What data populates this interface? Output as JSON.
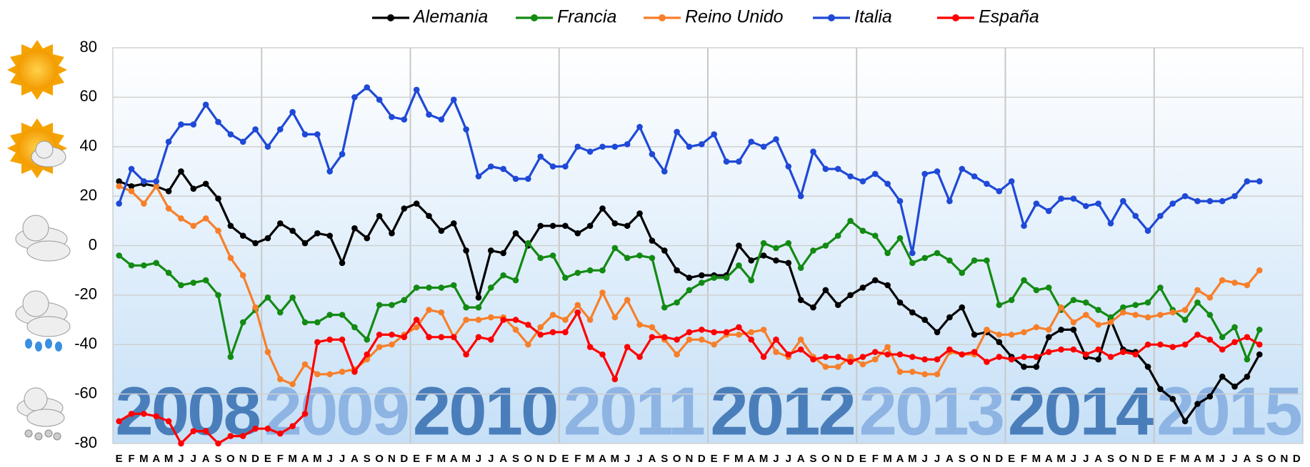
{
  "chart_data": {
    "type": "line",
    "categories": [
      "E",
      "F",
      "M",
      "A",
      "M",
      "J",
      "J",
      "A",
      "S",
      "O",
      "N",
      "D",
      "E",
      "F",
      "M",
      "A",
      "M",
      "J",
      "J",
      "A",
      "S",
      "O",
      "N",
      "D",
      "E",
      "F",
      "M",
      "A",
      "M",
      "J",
      "J",
      "A",
      "S",
      "O",
      "N",
      "D",
      "E",
      "F",
      "M",
      "A",
      "M",
      "J",
      "J",
      "A",
      "S",
      "O",
      "N",
      "D",
      "E",
      "F",
      "M",
      "A",
      "M",
      "J",
      "J",
      "A",
      "S",
      "O",
      "N",
      "D",
      "E",
      "F",
      "M",
      "A",
      "M",
      "J",
      "J",
      "A",
      "S",
      "O",
      "N",
      "D",
      "E",
      "F",
      "M",
      "A",
      "M",
      "J",
      "J",
      "A",
      "S",
      "O",
      "N",
      "D",
      "E",
      "F",
      "M",
      "A",
      "M",
      "J",
      "J",
      "A",
      "S",
      "O",
      "N",
      "D"
    ],
    "year_labels": [
      "2008",
      "2009",
      "2010",
      "2011",
      "2012",
      "2013",
      "2014",
      "2015"
    ],
    "year_colors": [
      "#4a7ebb",
      "#8eb4e3",
      "#4a7ebb",
      "#8eb4e3",
      "#4a7ebb",
      "#8eb4e3",
      "#4a7ebb",
      "#8eb4e3"
    ],
    "ylim": [
      -80,
      80
    ],
    "yticks": [
      -80,
      -60,
      -40,
      -20,
      0,
      20,
      40,
      60,
      80
    ],
    "grid": true,
    "legend": "top",
    "series": [
      {
        "name": "Alemania",
        "color": "#000000",
        "values": [
          26,
          24,
          25,
          24,
          22,
          30,
          23,
          25,
          19,
          8,
          4,
          1,
          3,
          9,
          6,
          1,
          5,
          4,
          -7,
          7,
          3,
          12,
          5,
          15,
          17,
          12,
          6,
          9,
          -2,
          -21,
          -2,
          -3,
          5,
          0,
          8,
          8,
          8,
          5,
          8,
          15,
          9,
          8,
          13,
          2,
          -2,
          -10,
          -13,
          -12,
          -12,
          -12,
          0,
          -6,
          -4,
          -6,
          -7,
          -22,
          -25,
          -18,
          -24,
          -20,
          -17,
          -14,
          -16,
          -23,
          -27,
          -30,
          -35,
          -29,
          -25,
          -36,
          -35,
          -39,
          -45,
          -49,
          -49,
          -37,
          -34,
          -34,
          -45,
          -46,
          -30,
          -42,
          -43,
          -49,
          -58,
          -62,
          -71,
          -64,
          -61,
          -53,
          -57,
          -53,
          -44,
          null,
          null,
          null
        ]
      },
      {
        "name": "Francia",
        "color": "#138a13",
        "values": [
          -4,
          -8,
          -8,
          -7,
          -11,
          -16,
          -15,
          -14,
          -20,
          -45,
          -31,
          -26,
          -21,
          -27,
          -21,
          -31,
          -31,
          -28,
          -28,
          -33,
          -38,
          -24,
          -24,
          -22,
          -17,
          -17,
          -17,
          -16,
          -25,
          -25,
          -17,
          -12,
          -14,
          1,
          -5,
          -4,
          -13,
          -11,
          -10,
          -10,
          -1,
          -5,
          -4,
          -5,
          -25,
          -23,
          -18,
          -15,
          -13,
          -13,
          -8,
          -14,
          1,
          -1,
          1,
          -9,
          -2,
          0,
          4,
          10,
          6,
          4,
          -3,
          3,
          -7,
          -5,
          -3,
          -6,
          -11,
          -6,
          -6,
          -24,
          -22,
          -14,
          -18,
          -17,
          -26,
          -22,
          -23,
          -26,
          -29,
          -25,
          -24,
          -23,
          -17,
          -26,
          -30,
          -23,
          -28,
          -37,
          -33,
          -46,
          -34,
          null,
          null,
          null
        ]
      },
      {
        "name": "Reino Unido",
        "color": "#f77f2a",
        "values": [
          24,
          22,
          17,
          24,
          15,
          11,
          8,
          11,
          6,
          -5,
          -12,
          -25,
          -43,
          -54,
          -56,
          -48,
          -52,
          -52,
          -51,
          -50,
          -46,
          -41,
          -40,
          -36,
          -33,
          -26,
          -27,
          -37,
          -30,
          -30,
          -29,
          -29,
          -34,
          -40,
          -33,
          -28,
          -30,
          -24,
          -30,
          -19,
          -29,
          -22,
          -32,
          -33,
          -38,
          -44,
          -38,
          -38,
          -40,
          -36,
          -36,
          -35,
          -34,
          -43,
          -45,
          -38,
          -45,
          -49,
          -49,
          -45,
          -48,
          -46,
          -41,
          -51,
          -51,
          -52,
          -52,
          -43,
          -44,
          -44,
          -34,
          -36,
          -36,
          -35,
          -33,
          -34,
          -25,
          -31,
          -28,
          -32,
          -31,
          -27,
          -28,
          -29,
          -28,
          -27,
          -26,
          -18,
          -21,
          -14,
          -15,
          -16,
          -10,
          null,
          null,
          null
        ]
      },
      {
        "name": "Italia",
        "color": "#1f49d6",
        "values": [
          17,
          31,
          26,
          26,
          42,
          49,
          49,
          57,
          50,
          45,
          42,
          47,
          40,
          47,
          54,
          45,
          45,
          30,
          37,
          60,
          64,
          59,
          52,
          51,
          63,
          53,
          51,
          59,
          47,
          28,
          32,
          31,
          27,
          27,
          36,
          32,
          32,
          40,
          38,
          40,
          40,
          41,
          48,
          37,
          30,
          46,
          40,
          41,
          45,
          34,
          34,
          42,
          40,
          43,
          32,
          20,
          38,
          31,
          31,
          28,
          26,
          29,
          25,
          18,
          -3,
          29,
          30,
          18,
          31,
          28,
          25,
          22,
          26,
          8,
          17,
          14,
          19,
          19,
          16,
          17,
          9,
          18,
          12,
          6,
          12,
          17,
          20,
          18,
          18,
          18,
          20,
          26,
          26,
          null,
          null,
          null
        ]
      },
      {
        "name": "España",
        "color": "#ff0000",
        "values": [
          -71,
          -68,
          -68,
          -69,
          -71,
          -80,
          -75,
          -75,
          -80,
          -77,
          -77,
          -74,
          -74,
          -76,
          -73,
          -68,
          -39,
          -38,
          -38,
          -51,
          -44,
          -36,
          -36,
          -37,
          -30,
          -37,
          -37,
          -37,
          -44,
          -37,
          -38,
          -30,
          -30,
          -32,
          -36,
          -35,
          -35,
          -27,
          -41,
          -44,
          -54,
          -41,
          -45,
          -37,
          -37,
          -38,
          -35,
          -34,
          -35,
          -35,
          -33,
          -38,
          -45,
          -38,
          -44,
          -42,
          -46,
          -45,
          -45,
          -47,
          -45,
          -43,
          -44,
          -44,
          -45,
          -46,
          -46,
          -42,
          -44,
          -43,
          -47,
          -45,
          -46,
          -45,
          -45,
          -43,
          -42,
          -42,
          -44,
          -42,
          -45,
          -43,
          -44,
          -40,
          -40,
          -41,
          -40,
          -36,
          -38,
          -42,
          -39,
          -37,
          -40,
          null,
          null,
          null
        ]
      }
    ]
  }
}
